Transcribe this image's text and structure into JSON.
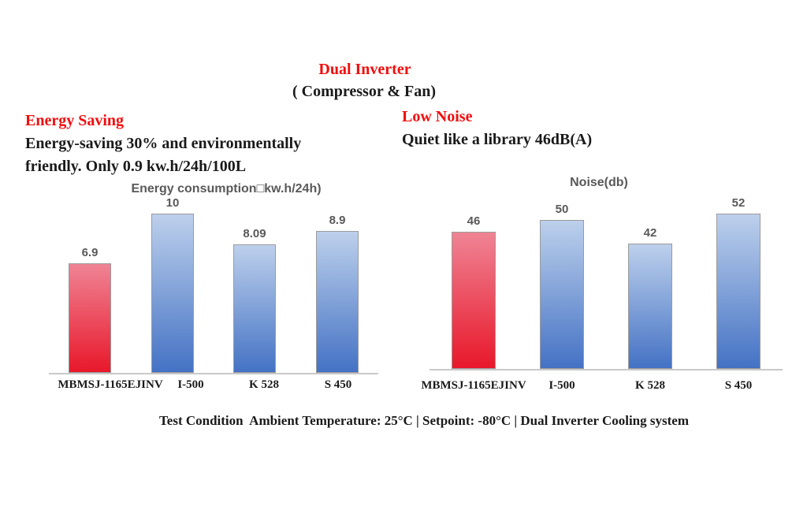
{
  "header": {
    "title": "Dual Inverter",
    "subtitle": "( Compressor & Fan)"
  },
  "energy_feature": {
    "heading": "Energy Saving",
    "line1": "Energy-saving 30% and environmentally",
    "line2": "friendly. Only 0.9 kw.h/24h/100L"
  },
  "noise_feature": {
    "heading": "Low Noise",
    "line1": "Quiet like a library 46dB(A)"
  },
  "footnote": "Test Condition  Ambient Temperature: 25°C | Setpoint: -80°C | Dual Inverter Cooling system",
  "colors": {
    "accent_red": "#f20d0d",
    "text_black": "#1a1a1a",
    "chart_gray": "#595959",
    "axis_gray": "#c9c9c9",
    "bar_border": "#9b9b9b",
    "bar_red_top": "#ef8494",
    "bar_red_bottom": "#e8182b",
    "bar_blue_top": "#bdd0ec",
    "bar_blue_bottom": "#4472c4"
  },
  "chart_data": [
    {
      "type": "bar",
      "title": "Energy consumption□kw.h/24h)",
      "categories": [
        "MBMSJ-1165EJINV",
        "I-500",
        "K 528",
        "S 450"
      ],
      "values": [
        6.9,
        10,
        8.09,
        8.9
      ],
      "value_labels": [
        "6.9",
        "10",
        "8.09",
        "8.9"
      ],
      "highlight_index": 0,
      "ylim": [
        0,
        10
      ],
      "grid": false,
      "legend": "none",
      "yaxis_visible": false
    },
    {
      "type": "bar",
      "title": "Noise(db)",
      "categories": [
        "MBMSJ-1165EJINV",
        "I-500",
        "K 528",
        "S 450"
      ],
      "values": [
        46,
        50,
        42,
        52
      ],
      "value_labels": [
        "46",
        "50",
        "42",
        "52"
      ],
      "highlight_index": 0,
      "ylim": [
        0,
        52
      ],
      "grid": false,
      "legend": "none",
      "yaxis_visible": false
    }
  ]
}
